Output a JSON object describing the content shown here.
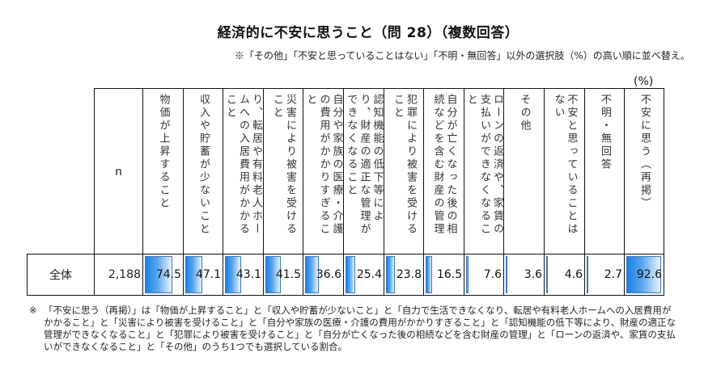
{
  "title": "経済的に不安に思うこと（問 28）（複数回答）",
  "note_top": "※「その他」「不安と思っていることはない」「不明・無回答」以外の選択肢（%）の高い順に並べ替え。",
  "unit": "(%)",
  "table": {
    "n_header": "n",
    "columns": [
      "物価が上昇すること",
      "収入や貯蓄が少ないこと",
      "自力で生活できなくなり、転居や有料老人ホームへの入居費用がかかること",
      "災害により被害を受けること",
      "自分や家族の医療・介護の費用がかかりすぎること",
      "認知機能の低下等により、財産の適正な管理ができなくなること",
      "犯罪により被害を受けること",
      "自分が亡くなった後の相続などを含む財産の管理",
      "ローンの返済や、家賃の支払いができなくなること",
      "その他",
      "不安と思っていることはない",
      "不明・無回答",
      "不安に思う（再掲）"
    ],
    "rows": [
      {
        "label": "全体",
        "n": "2,188",
        "values": [
          "74.5",
          "47.1",
          "43.1",
          "41.5",
          "36.6",
          "25.4",
          "23.8",
          "16.5",
          "7.6",
          "3.6",
          "4.6",
          "2.7",
          "92.6"
        ]
      }
    ]
  },
  "chart_data": {
    "type": "table",
    "title": "経済的に不安に思うこと（問 28）（複数回答）",
    "unit": "%",
    "categories": [
      "物価が上昇すること",
      "収入や貯蓄が少ないこと",
      "自力で生活できなくなり、転居や有料老人ホームへの入居費用がかかること",
      "災害により被害を受けること",
      "自分や家族の医療・介護の費用がかかりすぎること",
      "認知機能の低下等により、財産の適正な管理ができなくなること",
      "犯罪により被害を受けること",
      "自分が亡くなった後の相続などを含む財産の管理",
      "ローンの返済や、家賃の支払いができなくなること",
      "その他",
      "不安と思っていることはない",
      "不明・無回答",
      "不安に思う（再掲）"
    ],
    "series": [
      {
        "name": "全体",
        "n": 2188,
        "values": [
          74.5,
          47.1,
          43.1,
          41.5,
          36.6,
          25.4,
          23.8,
          16.5,
          7.6,
          3.6,
          4.6,
          2.7,
          92.6
        ]
      }
    ],
    "ylim": [
      0,
      100
    ]
  },
  "footnote": {
    "mark": "※",
    "text": "「不安に思う（再掲）」は「物価が上昇すること」と「収入や貯蓄が少ないこと」と「自力で生活できなくなり、転居や有料老人ホームへの入居費用がかかること」と「災害により被害を受けること」と「自分や家族の医療・介護の費用がかかりすぎること」と「認知機能の低下等により、財産の適正な管理ができなくなること」と「犯罪により被害を受けること」と「自分が亡くなった後の相続などを含む財産の管理」と「ローンの返済や、家賃の支払いができなくなること」と「その他」のうち1つでも選択している割合。"
  },
  "colors": {
    "bar_start": "#1b7fe3",
    "bar_end": "#e9f3fd",
    "bar_border": "#3a78b8",
    "grid": "#111111"
  }
}
